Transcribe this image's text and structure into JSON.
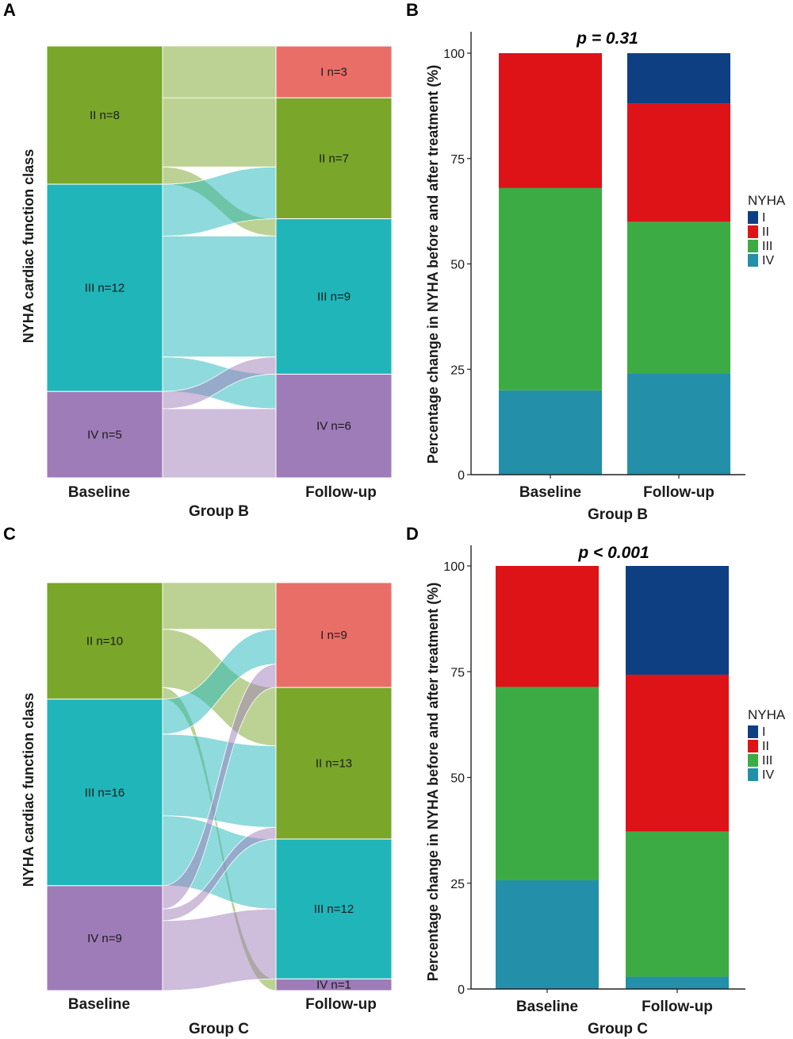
{
  "panels": [
    {
      "letter": "A",
      "group": "Group B",
      "ylabel": "NYHA cardiac function class",
      "stages": [
        "Baseline",
        "Follow-up"
      ]
    },
    {
      "letter": "B",
      "group": "Group B",
      "ylabel": "Percentage change in NYHA before and after treatment (%)",
      "pvalue": "p = 0.31"
    },
    {
      "letter": "C",
      "group": "Group C",
      "ylabel": "NYHA cardiac function class",
      "stages": [
        "Baseline",
        "Follow-up"
      ]
    },
    {
      "letter": "D",
      "group": "Group C",
      "ylabel": "Percentage change in NYHA before and after treatment (%)",
      "pvalue": "p < 0.001"
    }
  ],
  "legend": {
    "title": "NYHA",
    "entries": [
      {
        "label": "I",
        "color": "#0e3f82"
      },
      {
        "label": "II",
        "color": "#dd1318"
      },
      {
        "label": "III",
        "color": "#3dab43"
      },
      {
        "label": "IV",
        "color": "#238fa9"
      }
    ]
  },
  "colors": {
    "alluvial": {
      "I": "#ea6e68",
      "II": "#7aa62a",
      "III": "#1fb5b9",
      "IV": "#9e7cb8"
    }
  },
  "chart_data": [
    {
      "panel": "A",
      "type": "alluvial",
      "stages": [
        "Baseline",
        "Follow-up"
      ],
      "nodes": {
        "Baseline": [
          {
            "cls": "I",
            "n": 0,
            "label": ""
          },
          {
            "cls": "II",
            "n": 8,
            "label": "II  n=8"
          },
          {
            "cls": "III",
            "n": 12,
            "label": "III  n=12"
          },
          {
            "cls": "IV",
            "n": 5,
            "label": "IV  n=5"
          }
        ],
        "Follow-up": [
          {
            "cls": "I",
            "n": 3,
            "label": "I  n=3"
          },
          {
            "cls": "II",
            "n": 7,
            "label": "II  n=7"
          },
          {
            "cls": "III",
            "n": 9,
            "label": "III  n=9"
          },
          {
            "cls": "IV",
            "n": 6,
            "label": "IV  n=6"
          }
        ]
      },
      "flows": [
        {
          "from": "II",
          "to": "I",
          "n": 3
        },
        {
          "from": "II",
          "to": "II",
          "n": 4
        },
        {
          "from": "II",
          "to": "III",
          "n": 1
        },
        {
          "from": "III",
          "to": "II",
          "n": 3
        },
        {
          "from": "III",
          "to": "III",
          "n": 7
        },
        {
          "from": "III",
          "to": "IV",
          "n": 2
        },
        {
          "from": "IV",
          "to": "III",
          "n": 1
        },
        {
          "from": "IV",
          "to": "IV",
          "n": 4
        }
      ]
    },
    {
      "panel": "B",
      "type": "bar",
      "stacked": true,
      "categories": [
        "Baseline",
        "Follow-up"
      ],
      "series": [
        {
          "name": "IV",
          "values": [
            20,
            24
          ]
        },
        {
          "name": "III",
          "values": [
            48,
            36
          ]
        },
        {
          "name": "II",
          "values": [
            32,
            28
          ]
        },
        {
          "name": "I",
          "values": [
            0,
            12
          ]
        }
      ],
      "ylim": [
        0,
        100
      ],
      "yticks": [
        0,
        25,
        50,
        75,
        100
      ],
      "legend_position": "right"
    },
    {
      "panel": "C",
      "type": "alluvial",
      "stages": [
        "Baseline",
        "Follow-up"
      ],
      "nodes": {
        "Baseline": [
          {
            "cls": "I",
            "n": 0,
            "label": ""
          },
          {
            "cls": "II",
            "n": 10,
            "label": "II  n=10"
          },
          {
            "cls": "III",
            "n": 16,
            "label": "III  n=16"
          },
          {
            "cls": "IV",
            "n": 9,
            "label": "IV   n=9"
          }
        ],
        "Follow-up": [
          {
            "cls": "I",
            "n": 9,
            "label": "I    n=9"
          },
          {
            "cls": "II",
            "n": 13,
            "label": "II   n=13"
          },
          {
            "cls": "III",
            "n": 12,
            "label": "III  n=12"
          },
          {
            "cls": "IV",
            "n": 1,
            "label": "IV  n=1"
          }
        ]
      },
      "flows": [
        {
          "from": "II",
          "to": "I",
          "n": 4
        },
        {
          "from": "II",
          "to": "II",
          "n": 5
        },
        {
          "from": "II",
          "to": "IV",
          "n": 1
        },
        {
          "from": "III",
          "to": "I",
          "n": 3
        },
        {
          "from": "III",
          "to": "II",
          "n": 7
        },
        {
          "from": "III",
          "to": "III",
          "n": 6
        },
        {
          "from": "IV",
          "to": "I",
          "n": 2
        },
        {
          "from": "IV",
          "to": "II",
          "n": 1
        },
        {
          "from": "IV",
          "to": "III",
          "n": 6
        }
      ]
    },
    {
      "panel": "D",
      "type": "bar",
      "stacked": true,
      "categories": [
        "Baseline",
        "Follow-up"
      ],
      "series": [
        {
          "name": "IV",
          "values": [
            25.7,
            2.9
          ]
        },
        {
          "name": "III",
          "values": [
            45.7,
            34.3
          ]
        },
        {
          "name": "II",
          "values": [
            28.6,
            37.1
          ]
        },
        {
          "name": "I",
          "values": [
            0,
            25.7
          ]
        }
      ],
      "ylim": [
        0,
        100
      ],
      "yticks": [
        0,
        25,
        50,
        75,
        100
      ],
      "legend_position": "right"
    }
  ]
}
